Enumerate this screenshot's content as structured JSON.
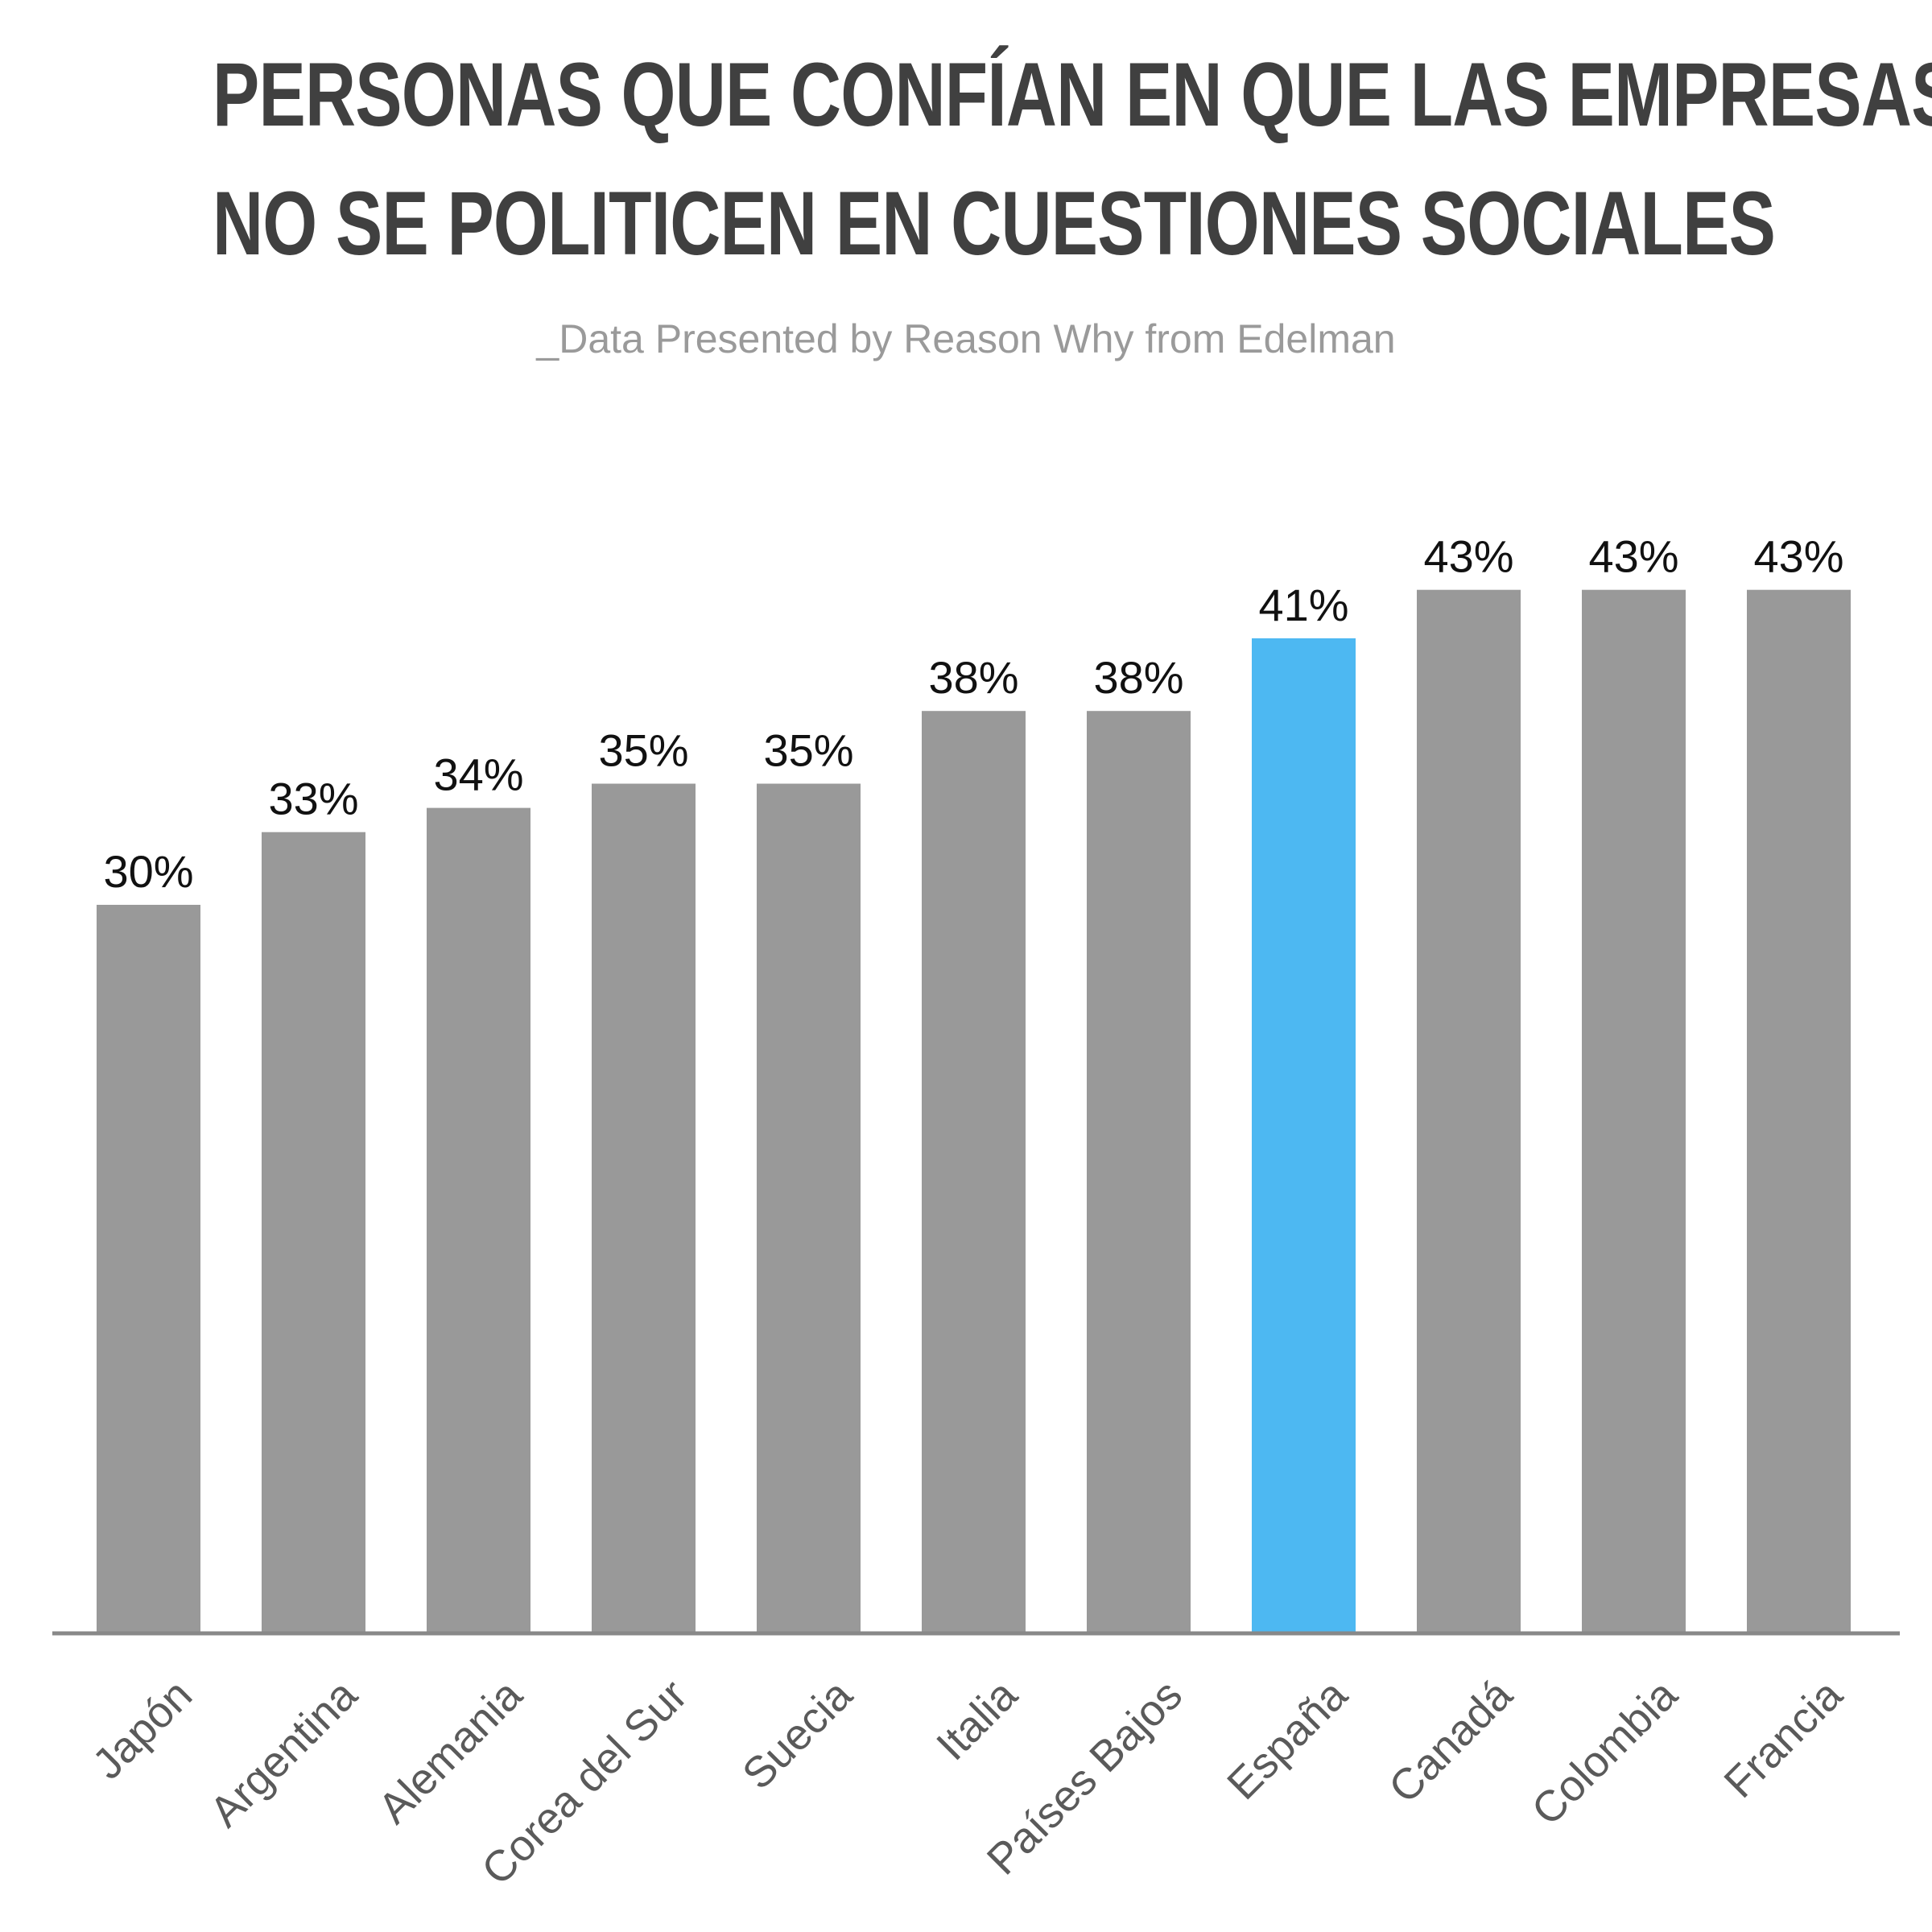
{
  "title": {
    "line1": "PERSONAS QUE CONFÍAN EN QUE LAS EMPRESAS",
    "line2": "NO SE POLITICEN EN CUESTIONES SOCIALES"
  },
  "subtitle": "_Data Presented by Reason Why from Edelman",
  "colors": {
    "bar": "#999999",
    "highlight": "#4db8f2",
    "axis": "#888888"
  },
  "chart_data": {
    "type": "bar",
    "categories": [
      "Japón",
      "Argentina",
      "Alemania",
      "Corea del Sur",
      "Suecia",
      "Italia",
      "Países Bajos",
      "España",
      "Canadá",
      "Colombia",
      "Francia"
    ],
    "values": [
      30,
      33,
      34,
      35,
      35,
      38,
      38,
      41,
      43,
      43,
      43
    ],
    "value_labels": [
      "30%",
      "33%",
      "34%",
      "35%",
      "35%",
      "38%",
      "38%",
      "41%",
      "43%",
      "43%",
      "43%"
    ],
    "highlight_category": "España",
    "title": "PERSONAS QUE CONFÍAN EN QUE LAS EMPRESAS NO SE POLITICEN EN CUESTIONES SOCIALES",
    "xlabel": "",
    "ylabel": "",
    "grid": false,
    "legend": "none"
  }
}
